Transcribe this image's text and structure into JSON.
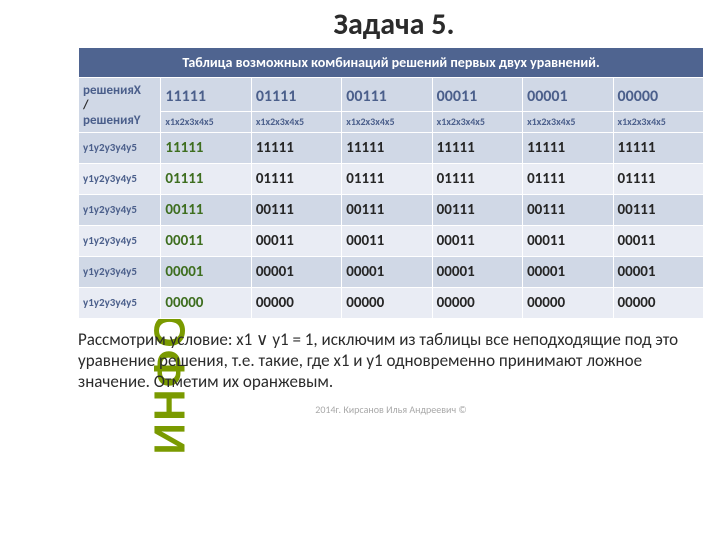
{
  "sidebar": {
    "label": "ИНФОРМАТИКА"
  },
  "title": "Задача 5.",
  "table": {
    "caption": "Таблица возможных комбинаций решений первых двух уравнений.",
    "corner": {
      "x": "решенияX",
      "slash": "/",
      "y": "решенияY"
    },
    "col_headers": [
      "11111",
      "01111",
      "00111",
      "00011",
      "00001",
      "00000"
    ],
    "subheader": "x1x2x3x4x5",
    "subheader_long": "x1x2x3x4x5",
    "row_label": "y1y2y3y4y5",
    "rows": [
      {
        "diag": "11111",
        "cells": [
          "11111",
          "11111",
          "11111",
          "11111",
          "11111",
          "11111"
        ]
      },
      {
        "diag": "01111",
        "cells": [
          "01111",
          "01111",
          "01111",
          "01111",
          "01111",
          "01111"
        ]
      },
      {
        "diag": "00111",
        "cells": [
          "00111",
          "00111",
          "00111",
          "00111",
          "00111",
          "00111"
        ]
      },
      {
        "diag": "00011",
        "cells": [
          "00011",
          "00011",
          "00011",
          "00011",
          "00011",
          "00011"
        ]
      },
      {
        "diag": "00001",
        "cells": [
          "00001",
          "00001",
          "00001",
          "00001",
          "00001",
          "00001"
        ]
      },
      {
        "diag": "00000",
        "cells": [
          "00000",
          "00000",
          "00000",
          "00000",
          "00000",
          "00000"
        ]
      }
    ],
    "shade_colors": {
      "a": "#d0d8e6",
      "b": "#e9ecf4"
    },
    "header_bg": "#4f6490",
    "diag_color": "#3e6e1f"
  },
  "paragraph": "Рассмотрим условие: x1 ∨ y1 = 1, исключим из таблицы все неподходящие под это уравнение решения, т.е. такие, где x1 и y1 одновременно принимают ложное значение. Отметим их оранжевым.",
  "footer": "2014г. Кирсанов Илья Андреевич ©"
}
